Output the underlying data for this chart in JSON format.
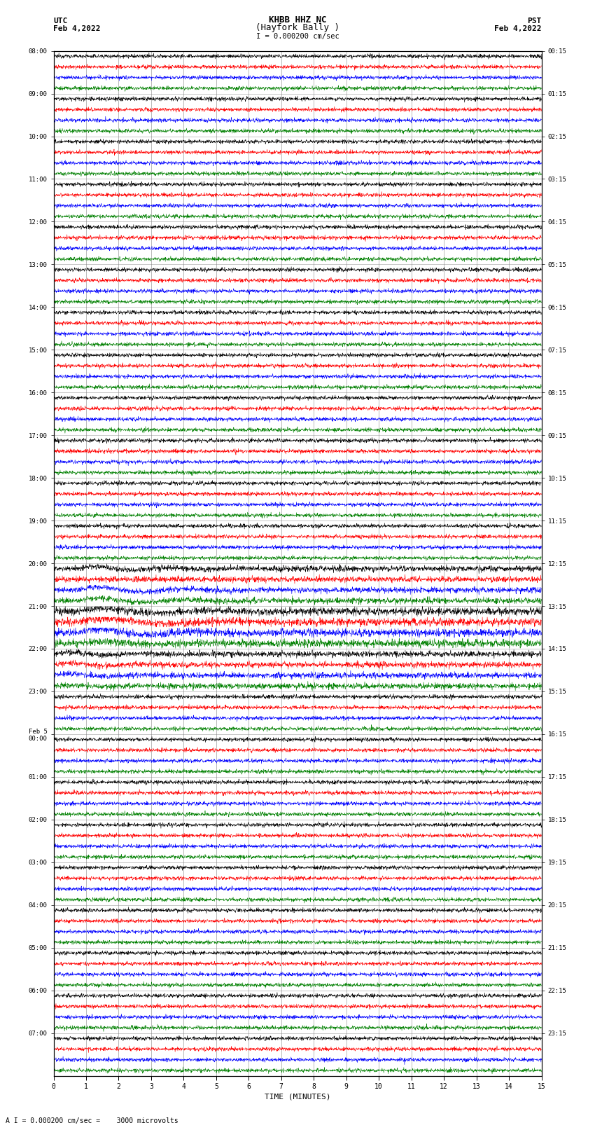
{
  "title_line1": "KHBB HHZ NC",
  "title_line2": "(Hayfork Bally )",
  "scale_label": "I = 0.000200 cm/sec",
  "footer_label": "A I = 0.000200 cm/sec =    3000 microvolts",
  "xlabel": "TIME (MINUTES)",
  "utc_start": "UTC\nFeb 4,2022",
  "pst_start": "PST\nFeb 4,2022",
  "utc_times": [
    "08:00",
    "09:00",
    "10:00",
    "11:00",
    "12:00",
    "13:00",
    "14:00",
    "15:00",
    "16:00",
    "17:00",
    "18:00",
    "19:00",
    "20:00",
    "21:00",
    "22:00",
    "23:00",
    "Feb 5\n00:00",
    "01:00",
    "02:00",
    "03:00",
    "04:00",
    "05:00",
    "06:00",
    "07:00"
  ],
  "pst_times": [
    "00:15",
    "01:15",
    "02:15",
    "03:15",
    "04:15",
    "05:15",
    "06:15",
    "07:15",
    "08:15",
    "09:15",
    "10:15",
    "11:15",
    "12:15",
    "13:15",
    "14:15",
    "15:15",
    "16:15",
    "17:15",
    "18:15",
    "19:15",
    "20:15",
    "21:15",
    "22:15",
    "23:15"
  ],
  "trace_colors": [
    "black",
    "red",
    "blue",
    "green"
  ],
  "bg_color": "white",
  "grid_color": "#777777",
  "num_hour_rows": 24,
  "traces_per_hour": 4,
  "xmin": 0,
  "xmax": 15,
  "xticks": [
    0,
    1,
    2,
    3,
    4,
    5,
    6,
    7,
    8,
    9,
    10,
    11,
    12,
    13,
    14,
    15
  ],
  "noise_amplitude": 0.09,
  "event_hour": 13,
  "fig_width": 8.5,
  "fig_height": 16.13,
  "dpi": 100
}
